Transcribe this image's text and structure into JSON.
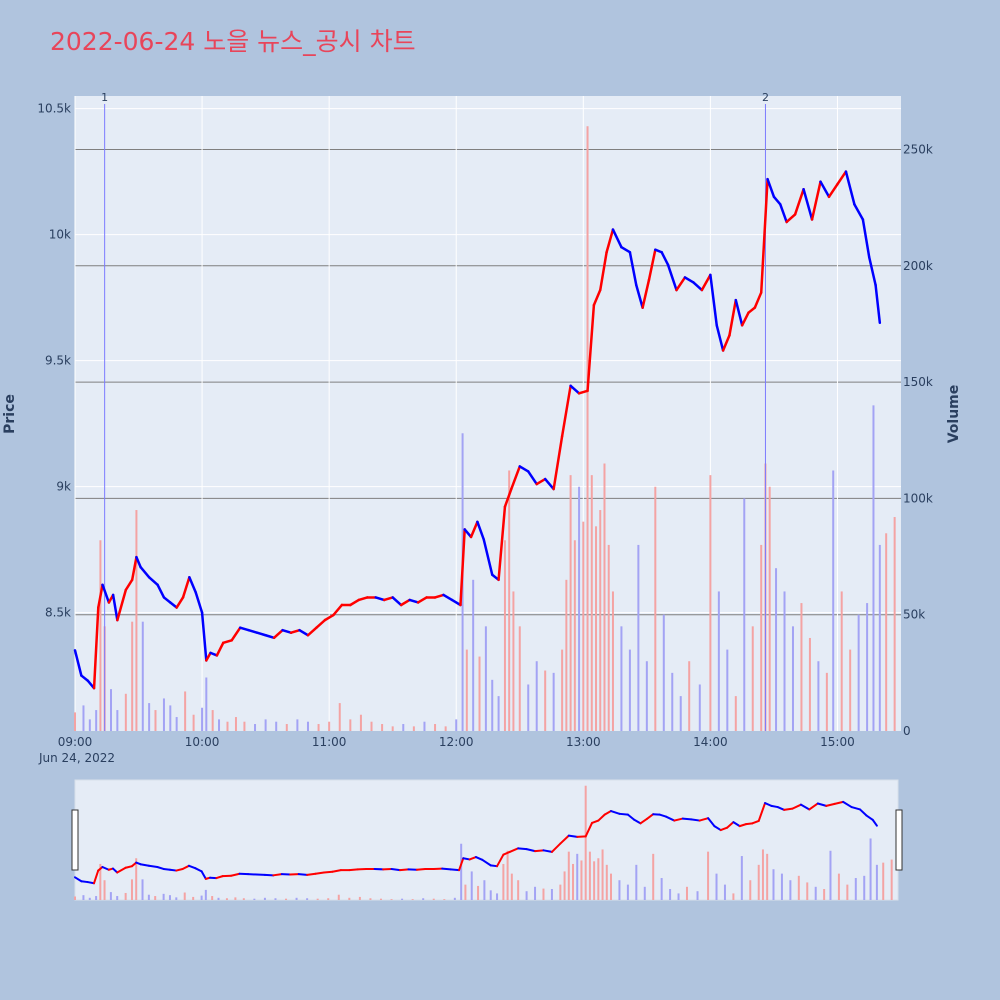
{
  "page": {
    "title": "2022-06-24 노을 뉴스_공시 차트"
  },
  "colors": {
    "background": "#b0c4de",
    "plot_bg": "#e5ecf6",
    "up": "#ff0000",
    "down": "#0000ff",
    "title": "#e8455a",
    "up_volume": "#f4a3a3",
    "down_volume": "#a3a3f4"
  },
  "chart_data": {
    "type": "candlestick",
    "title": "2022-06-24 노을 뉴스_공시 차트",
    "xlabel": "",
    "ylabel": "Price",
    "y2label": "Volume",
    "x_tick_labels": [
      "09:00",
      "10:00",
      "11:00",
      "12:00",
      "13:00",
      "14:00",
      "15:00"
    ],
    "x_date_label": "Jun 24, 2022",
    "y_tick_labels": [
      "8.5k",
      "9k",
      "9.5k",
      "10k",
      "10.5k"
    ],
    "y_ticks": [
      8500,
      9000,
      9500,
      10000,
      10500
    ],
    "ylim": [
      8030,
      10550
    ],
    "y2_tick_labels": [
      "0",
      "50k",
      "100k",
      "150k",
      "200k",
      "250k"
    ],
    "y2_ticks": [
      0,
      50000,
      100000,
      150000,
      200000,
      250000
    ],
    "y2lim": [
      0,
      273000
    ],
    "xlim_minutes": [
      540,
      930
    ],
    "news_markers": [
      {
        "label": "1",
        "time": "09:14"
      },
      {
        "label": "2",
        "time": "14:26"
      }
    ],
    "price_series": [
      [
        "09:00",
        8350
      ],
      [
        "09:03",
        8250
      ],
      [
        "09:06",
        8230
      ],
      [
        "09:09",
        8200
      ],
      [
        "09:11",
        8520
      ],
      [
        "09:13",
        8610
      ],
      [
        "09:16",
        8540
      ],
      [
        "09:18",
        8570
      ],
      [
        "09:20",
        8470
      ],
      [
        "09:24",
        8590
      ],
      [
        "09:27",
        8630
      ],
      [
        "09:29",
        8720
      ],
      [
        "09:31",
        8680
      ],
      [
        "09:35",
        8640
      ],
      [
        "09:39",
        8610
      ],
      [
        "09:42",
        8560
      ],
      [
        "09:45",
        8540
      ],
      [
        "09:48",
        8520
      ],
      [
        "09:51",
        8560
      ],
      [
        "09:54",
        8640
      ],
      [
        "09:57",
        8580
      ],
      [
        "10:00",
        8500
      ],
      [
        "10:02",
        8310
      ],
      [
        "10:04",
        8340
      ],
      [
        "10:07",
        8330
      ],
      [
        "10:10",
        8380
      ],
      [
        "10:14",
        8390
      ],
      [
        "10:18",
        8440
      ],
      [
        "10:22",
        8430
      ],
      [
        "10:26",
        8420
      ],
      [
        "10:30",
        8410
      ],
      [
        "10:34",
        8400
      ],
      [
        "10:38",
        8430
      ],
      [
        "10:42",
        8420
      ],
      [
        "10:46",
        8430
      ],
      [
        "10:50",
        8410
      ],
      [
        "10:54",
        8440
      ],
      [
        "10:58",
        8470
      ],
      [
        "11:02",
        8490
      ],
      [
        "11:06",
        8530
      ],
      [
        "11:10",
        8530
      ],
      [
        "11:14",
        8550
      ],
      [
        "11:18",
        8560
      ],
      [
        "11:22",
        8560
      ],
      [
        "11:26",
        8550
      ],
      [
        "11:30",
        8560
      ],
      [
        "11:34",
        8530
      ],
      [
        "11:38",
        8550
      ],
      [
        "11:42",
        8540
      ],
      [
        "11:46",
        8560
      ],
      [
        "11:50",
        8560
      ],
      [
        "11:54",
        8570
      ],
      [
        "11:58",
        8550
      ],
      [
        "12:02",
        8530
      ],
      [
        "12:04",
        8830
      ],
      [
        "12:07",
        8800
      ],
      [
        "12:10",
        8860
      ],
      [
        "12:13",
        8790
      ],
      [
        "12:17",
        8650
      ],
      [
        "12:20",
        8630
      ],
      [
        "12:23",
        8920
      ],
      [
        "12:26",
        8990
      ],
      [
        "12:30",
        9080
      ],
      [
        "12:34",
        9060
      ],
      [
        "12:38",
        9010
      ],
      [
        "12:42",
        9030
      ],
      [
        "12:46",
        8990
      ],
      [
        "12:50",
        9200
      ],
      [
        "12:54",
        9400
      ],
      [
        "12:58",
        9370
      ],
      [
        "13:02",
        9380
      ],
      [
        "13:05",
        9720
      ],
      [
        "13:08",
        9780
      ],
      [
        "13:11",
        9930
      ],
      [
        "13:14",
        10020
      ],
      [
        "13:18",
        9950
      ],
      [
        "13:22",
        9930
      ],
      [
        "13:25",
        9800
      ],
      [
        "13:28",
        9710
      ],
      [
        "13:31",
        9820
      ],
      [
        "13:34",
        9940
      ],
      [
        "13:37",
        9930
      ],
      [
        "13:40",
        9880
      ],
      [
        "13:44",
        9780
      ],
      [
        "13:48",
        9830
      ],
      [
        "13:52",
        9810
      ],
      [
        "13:56",
        9780
      ],
      [
        "14:00",
        9840
      ],
      [
        "14:03",
        9640
      ],
      [
        "14:06",
        9540
      ],
      [
        "14:09",
        9600
      ],
      [
        "14:12",
        9740
      ],
      [
        "14:15",
        9640
      ],
      [
        "14:18",
        9690
      ],
      [
        "14:21",
        9710
      ],
      [
        "14:24",
        9770
      ],
      [
        "14:27",
        10220
      ],
      [
        "14:30",
        10150
      ],
      [
        "14:33",
        10120
      ],
      [
        "14:36",
        10050
      ],
      [
        "14:40",
        10080
      ],
      [
        "14:44",
        10180
      ],
      [
        "14:48",
        10060
      ],
      [
        "14:52",
        10210
      ],
      [
        "14:56",
        10150
      ],
      [
        "15:00",
        10200
      ],
      [
        "15:04",
        10250
      ],
      [
        "15:08",
        10120
      ],
      [
        "15:12",
        10060
      ],
      [
        "15:15",
        9910
      ],
      [
        "15:18",
        9800
      ],
      [
        "15:20",
        9650
      ]
    ],
    "volume_series": [
      [
        "09:00",
        8000
      ],
      [
        "09:04",
        11000
      ],
      [
        "09:07",
        5000
      ],
      [
        "09:10",
        9000
      ],
      [
        "09:12",
        82000
      ],
      [
        "09:14",
        45000
      ],
      [
        "09:17",
        18000
      ],
      [
        "09:20",
        9000
      ],
      [
        "09:24",
        16000
      ],
      [
        "09:27",
        47000
      ],
      [
        "09:29",
        95000
      ],
      [
        "09:32",
        47000
      ],
      [
        "09:35",
        12000
      ],
      [
        "09:38",
        9000
      ],
      [
        "09:42",
        14000
      ],
      [
        "09:45",
        11000
      ],
      [
        "09:48",
        6000
      ],
      [
        "09:52",
        17000
      ],
      [
        "09:56",
        7000
      ],
      [
        "10:00",
        10000
      ],
      [
        "10:02",
        23000
      ],
      [
        "10:05",
        9000
      ],
      [
        "10:08",
        5000
      ],
      [
        "10:12",
        4000
      ],
      [
        "10:16",
        6000
      ],
      [
        "10:20",
        4000
      ],
      [
        "10:25",
        3000
      ],
      [
        "10:30",
        5000
      ],
      [
        "10:35",
        4000
      ],
      [
        "10:40",
        3000
      ],
      [
        "10:45",
        5000
      ],
      [
        "10:50",
        4000
      ],
      [
        "10:55",
        3000
      ],
      [
        "11:00",
        4000
      ],
      [
        "11:05",
        12000
      ],
      [
        "11:10",
        5000
      ],
      [
        "11:15",
        7000
      ],
      [
        "11:20",
        4000
      ],
      [
        "11:25",
        3000
      ],
      [
        "11:30",
        2000
      ],
      [
        "11:35",
        3000
      ],
      [
        "11:40",
        2000
      ],
      [
        "11:45",
        4000
      ],
      [
        "11:50",
        3000
      ],
      [
        "11:55",
        2000
      ],
      [
        "12:00",
        5000
      ],
      [
        "12:03",
        128000
      ],
      [
        "12:05",
        35000
      ],
      [
        "12:08",
        65000
      ],
      [
        "12:11",
        32000
      ],
      [
        "12:14",
        45000
      ],
      [
        "12:17",
        22000
      ],
      [
        "12:20",
        15000
      ],
      [
        "12:23",
        82000
      ],
      [
        "12:25",
        112000
      ],
      [
        "12:27",
        60000
      ],
      [
        "12:30",
        45000
      ],
      [
        "12:34",
        20000
      ],
      [
        "12:38",
        30000
      ],
      [
        "12:42",
        26000
      ],
      [
        "12:46",
        25000
      ],
      [
        "12:50",
        35000
      ],
      [
        "12:52",
        65000
      ],
      [
        "12:54",
        110000
      ],
      [
        "12:56",
        82000
      ],
      [
        "12:58",
        105000
      ],
      [
        "13:00",
        90000
      ],
      [
        "13:02",
        260000
      ],
      [
        "13:04",
        110000
      ],
      [
        "13:06",
        88000
      ],
      [
        "13:08",
        95000
      ],
      [
        "13:10",
        115000
      ],
      [
        "13:12",
        80000
      ],
      [
        "13:14",
        60000
      ],
      [
        "13:18",
        45000
      ],
      [
        "13:22",
        35000
      ],
      [
        "13:26",
        80000
      ],
      [
        "13:30",
        30000
      ],
      [
        "13:34",
        105000
      ],
      [
        "13:38",
        50000
      ],
      [
        "13:42",
        25000
      ],
      [
        "13:46",
        15000
      ],
      [
        "13:50",
        30000
      ],
      [
        "13:55",
        20000
      ],
      [
        "14:00",
        110000
      ],
      [
        "14:04",
        60000
      ],
      [
        "14:08",
        35000
      ],
      [
        "14:12",
        15000
      ],
      [
        "14:16",
        100000
      ],
      [
        "14:20",
        45000
      ],
      [
        "14:24",
        80000
      ],
      [
        "14:26",
        115000
      ],
      [
        "14:28",
        105000
      ],
      [
        "14:31",
        70000
      ],
      [
        "14:35",
        60000
      ],
      [
        "14:39",
        45000
      ],
      [
        "14:43",
        55000
      ],
      [
        "14:47",
        40000
      ],
      [
        "14:51",
        30000
      ],
      [
        "14:55",
        25000
      ],
      [
        "14:58",
        112000
      ],
      [
        "15:02",
        60000
      ],
      [
        "15:06",
        35000
      ],
      [
        "15:10",
        50000
      ],
      [
        "15:14",
        55000
      ],
      [
        "15:17",
        140000
      ],
      [
        "15:20",
        80000
      ],
      [
        "15:23",
        85000
      ],
      [
        "15:27",
        92000
      ]
    ],
    "grid": true,
    "legend": "none"
  }
}
